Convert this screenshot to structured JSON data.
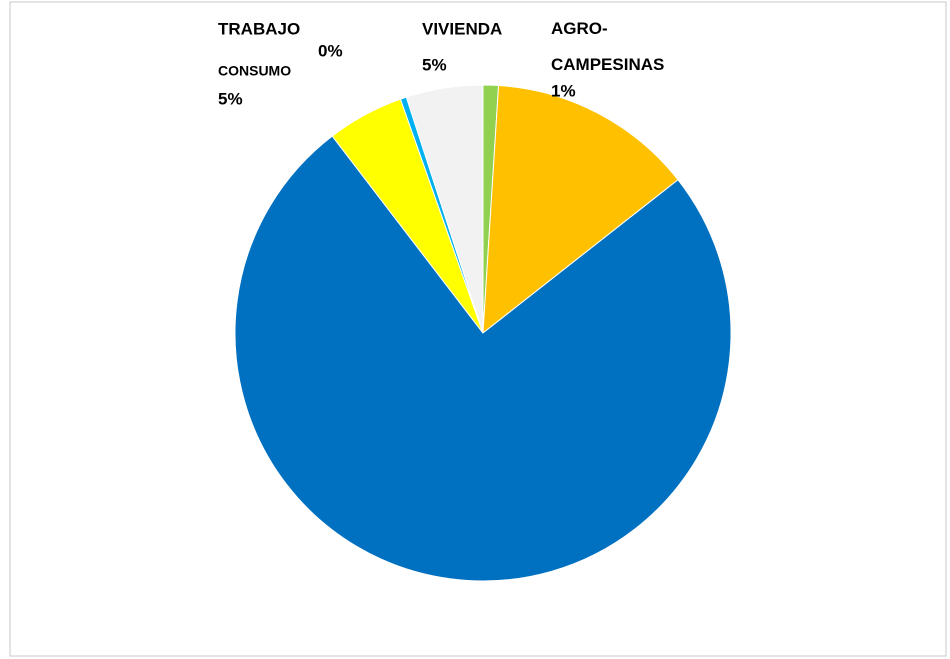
{
  "chart_data": {
    "type": "pie",
    "categories": [
      "AGRO-\nCAMPESINAS",
      null,
      null,
      "CONSUMO",
      "TRABAJO",
      "VIVIENDA"
    ],
    "values": [
      1,
      13.4,
      75.2,
      5,
      0.4,
      5
    ],
    "value_labels": [
      "1%",
      null,
      null,
      "5%",
      "0%",
      "5%"
    ],
    "colors": [
      "#92d050",
      "#ffc000",
      "#0070c0",
      "#ffff00",
      "#00b0f0",
      "#f2f2f2"
    ]
  }
}
